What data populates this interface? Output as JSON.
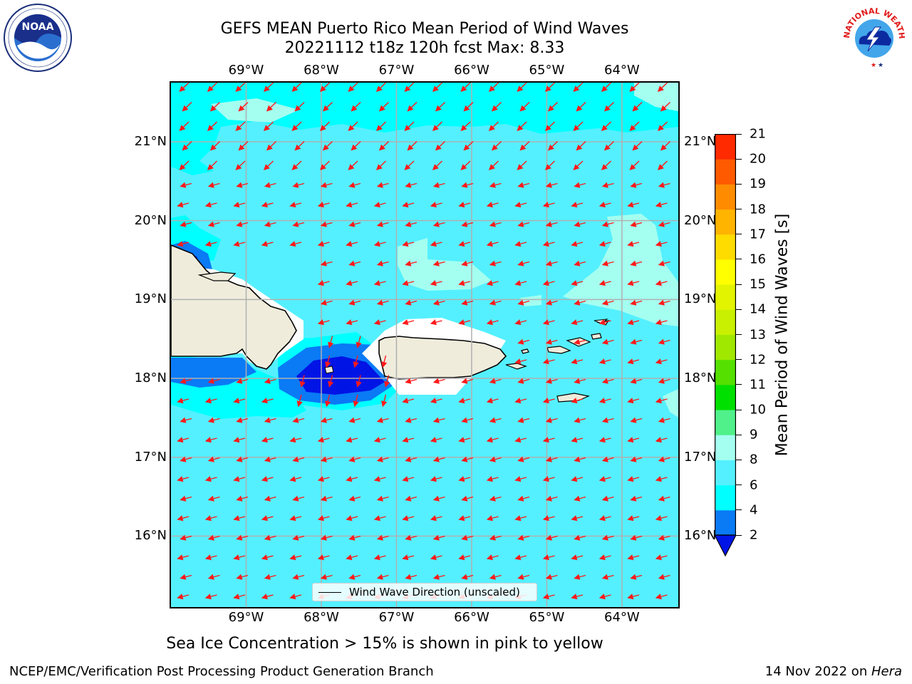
{
  "title": {
    "line1": "GEFS MEAN Puerto Rico Mean Period of Wind Waves",
    "line2": "20221112 t18z 120h fcst   Max: 8.33"
  },
  "logos": {
    "left": {
      "icon": "noaa-logo",
      "text": "NOAA",
      "ring": "NATIONAL OCEANIC AND ATMOSPHERIC ADMINISTRATION · U.S. DEPARTMENT OF COMMERCE"
    },
    "right": {
      "icon": "nws-logo",
      "ring": "NATIONAL WEATHER SERVICE"
    }
  },
  "map": {
    "lon_labels": [
      "69°W",
      "68°W",
      "67°W",
      "66°W",
      "65°W",
      "64°W"
    ],
    "lat_labels": [
      "21°N",
      "20°N",
      "19°N",
      "18°N",
      "17°N",
      "16°N"
    ],
    "lon_values": [
      -69,
      -68,
      -67,
      -66,
      -65,
      -64
    ],
    "lat_values": [
      21,
      20,
      19,
      18,
      17,
      16
    ],
    "lon_range": [
      -70,
      -63.25
    ],
    "lat_range": [
      15.1,
      21.75
    ],
    "grid": true,
    "land_color": "#efecdc",
    "arrow_color": "#ff1a1a",
    "arrow_direction": "from east-northeast (pointing west-southwest)",
    "legend": {
      "line_label": "Wind Wave Direction (unscaled)",
      "location": "bottom-center"
    }
  },
  "colorbar": {
    "title": "Mean Period of Wind Waves [s]",
    "tick_labels": [
      "2",
      "4",
      "6",
      "8",
      "9",
      "10",
      "11",
      "12",
      "13",
      "14",
      "15",
      "16",
      "17",
      "18",
      "19",
      "20",
      "21"
    ],
    "levels": [
      2,
      4,
      6,
      8,
      9,
      10,
      11,
      12,
      13,
      14,
      15,
      16,
      17,
      18,
      19,
      20,
      21
    ],
    "colors": [
      "#0a7af5",
      "#00ffff",
      "#54f0ff",
      "#a4fff0",
      "#50f08a",
      "#00e000",
      "#55e000",
      "#a0e800",
      "#c8f000",
      "#e2f400",
      "#ffff00",
      "#ffdc00",
      "#ffb400",
      "#ff8c00",
      "#ff5a00",
      "#ff2a00",
      "#ff0000"
    ],
    "under_color": "#0014e6",
    "extend": "min"
  },
  "chart_data": {
    "type": "heatmap",
    "title": "GEFS MEAN Puerto Rico Mean Period of Wind Waves",
    "variable": "Mean Period of Wind Waves [s]",
    "run": "20221112 t18z",
    "forecast_hour": "120h",
    "max": 8.33,
    "colorbar_levels": [
      2,
      4,
      6,
      8,
      9,
      10,
      11,
      12,
      13,
      14,
      15,
      16,
      17,
      18,
      19,
      20,
      21
    ],
    "xlim": [
      -70,
      -63.25
    ],
    "ylim": [
      15.1,
      21.75
    ]
  },
  "notes": {
    "sea_ice": "Sea Ice Concentration > 15% is shown in pink to yellow",
    "branch": "NCEP/EMC/Verification Post Processing Product Generation Branch",
    "date_prefix": "14 Nov 2022 on ",
    "machine": "Hera"
  }
}
